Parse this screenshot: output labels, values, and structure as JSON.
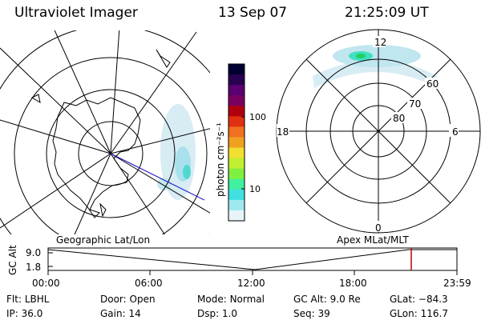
{
  "header": {
    "instrument": "Ultraviolet Imager",
    "date": "13 Sep 07",
    "time": "21:25:09 UT"
  },
  "colorbar": {
    "unit": "photon cm⁻²s⁻¹",
    "ticks": [
      "100",
      "10"
    ],
    "colors": [
      "#000033",
      "#2a0050",
      "#5a0070",
      "#7a0060",
      "#b00010",
      "#e03010",
      "#f07020",
      "#f0a020",
      "#f0e030",
      "#c0f030",
      "#80f040",
      "#40f0a0",
      "#40e0e0",
      "#a0e8f0",
      "#e8f4f8"
    ]
  },
  "left_map": {
    "label": "Geographic Lat/Lon"
  },
  "right_map": {
    "label": "Apex  MLat/MLT",
    "mlt_labels": [
      "12",
      "6",
      "18",
      "0"
    ],
    "lat_labels": [
      "60",
      "70",
      "80"
    ]
  },
  "timeline": {
    "axis_label": "GC Alt",
    "y_ticks": [
      "9.0",
      "1.8"
    ],
    "x_ticks": [
      "00:00",
      "06:00",
      "12:00",
      "18:00",
      "23:59"
    ],
    "marker_color": "#c00000"
  },
  "info": {
    "filt_label": "Flt:",
    "filt_value": "LBHL",
    "door_label": "Door:",
    "door_value": "Open",
    "mode_label": "Mode:",
    "mode_value": "Normal",
    "gcalt_label": "GC Alt:",
    "gcalt_value": "9.0 Re",
    "glat_label": "GLat:",
    "glat_value": "−84.3",
    "ip_label": "IP:",
    "ip_value": "36.0",
    "gain_label": "Gain:",
    "gain_value": "14",
    "dsp_label": "Dsp:",
    "dsp_value": "1.0",
    "seq_label": "Seq:",
    "seq_value": "39",
    "glon_label": "GLon:",
    "glon_value": "116.7"
  }
}
